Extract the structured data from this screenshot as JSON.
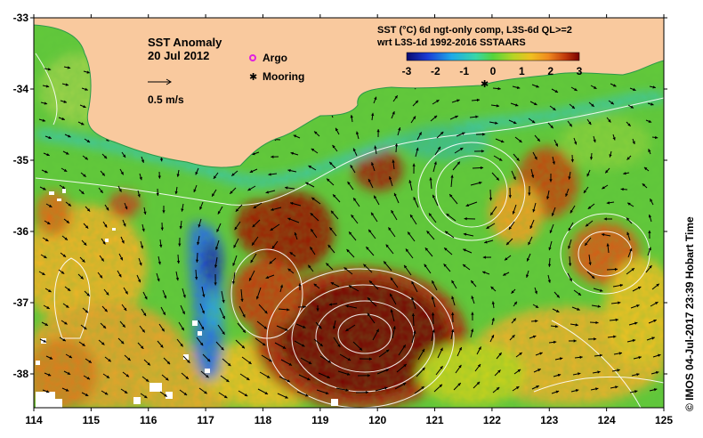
{
  "map": {
    "title_line1": "SST Anomaly",
    "title_line2": "20 Jul 2012",
    "scale_label": "0.5 m/s",
    "legend_argo": "Argo",
    "legend_mooring": "Mooring",
    "product_line1": "SST (°C) 6d ngt-only comp, L3S-6d QL>=2",
    "product_line2": "wrt L3S-1d 1992-2016 SSTAARS",
    "credit": "© IMOS 04-Jul-2017 23:39 Hobart Time",
    "land_color": "#f9c99e",
    "colorbar": {
      "ticks": [
        "-3",
        "-2",
        "-1",
        "0",
        "1",
        "2",
        "3"
      ],
      "colors": [
        "#0a0a6e",
        "#1b3bd6",
        "#1fa9e8",
        "#38d6a8",
        "#55d43a",
        "#9fd22a",
        "#e0d21a",
        "#f5a623",
        "#e06a16",
        "#b02a0a",
        "#7a0000"
      ]
    },
    "x_axis": {
      "ticks": [
        "114",
        "115",
        "116",
        "117",
        "118",
        "119",
        "120",
        "121",
        "122",
        "123",
        "124",
        "125"
      ]
    },
    "y_axis": {
      "ticks": [
        "-33",
        "-34",
        "-35",
        "-36",
        "-37",
        "-38"
      ]
    }
  }
}
